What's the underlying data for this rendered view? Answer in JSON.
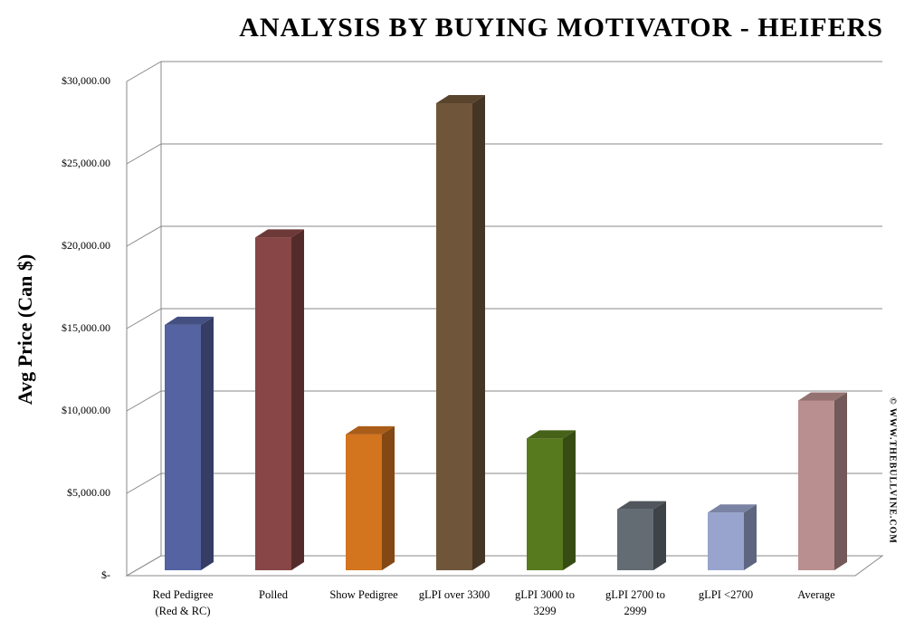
{
  "chart_data": {
    "type": "bar3d",
    "title": "ANALYSIS BY BUYING MOTIVATOR - HEIFERS",
    "y_label": "Avg Price (Can $)",
    "watermark": "© WWW.THEBULLVINE.COM",
    "categories": [
      "Red Pedigree\n(Red & RC)",
      "Polled",
      "Show Pedigree",
      "gLPI over 3300",
      "gLPI 3000 to\n3299",
      "gLPI 2700 to\n2999",
      "gLPI <2700",
      "Average"
    ],
    "values": [
      14900,
      20200,
      8250,
      28350,
      8000,
      3700,
      3500,
      10300
    ],
    "colors": [
      "#5563a3",
      "#884646",
      "#d3741e",
      "#6f563a",
      "#587a1e",
      "#646c73",
      "#98a4cd",
      "#b98f8f"
    ],
    "ylim": [
      0,
      30000
    ],
    "yticks": [
      {
        "value": 0,
        "label": "$-"
      },
      {
        "value": 5000,
        "label": "$5,000.00"
      },
      {
        "value": 10000,
        "label": "$10,000.00"
      },
      {
        "value": 15000,
        "label": "$15,000.00"
      },
      {
        "value": 20000,
        "label": "$20,000.00"
      },
      {
        "value": 25000,
        "label": "$25,000.00"
      },
      {
        "value": 30000,
        "label": "$30,000.00"
      }
    ],
    "grid": true
  }
}
